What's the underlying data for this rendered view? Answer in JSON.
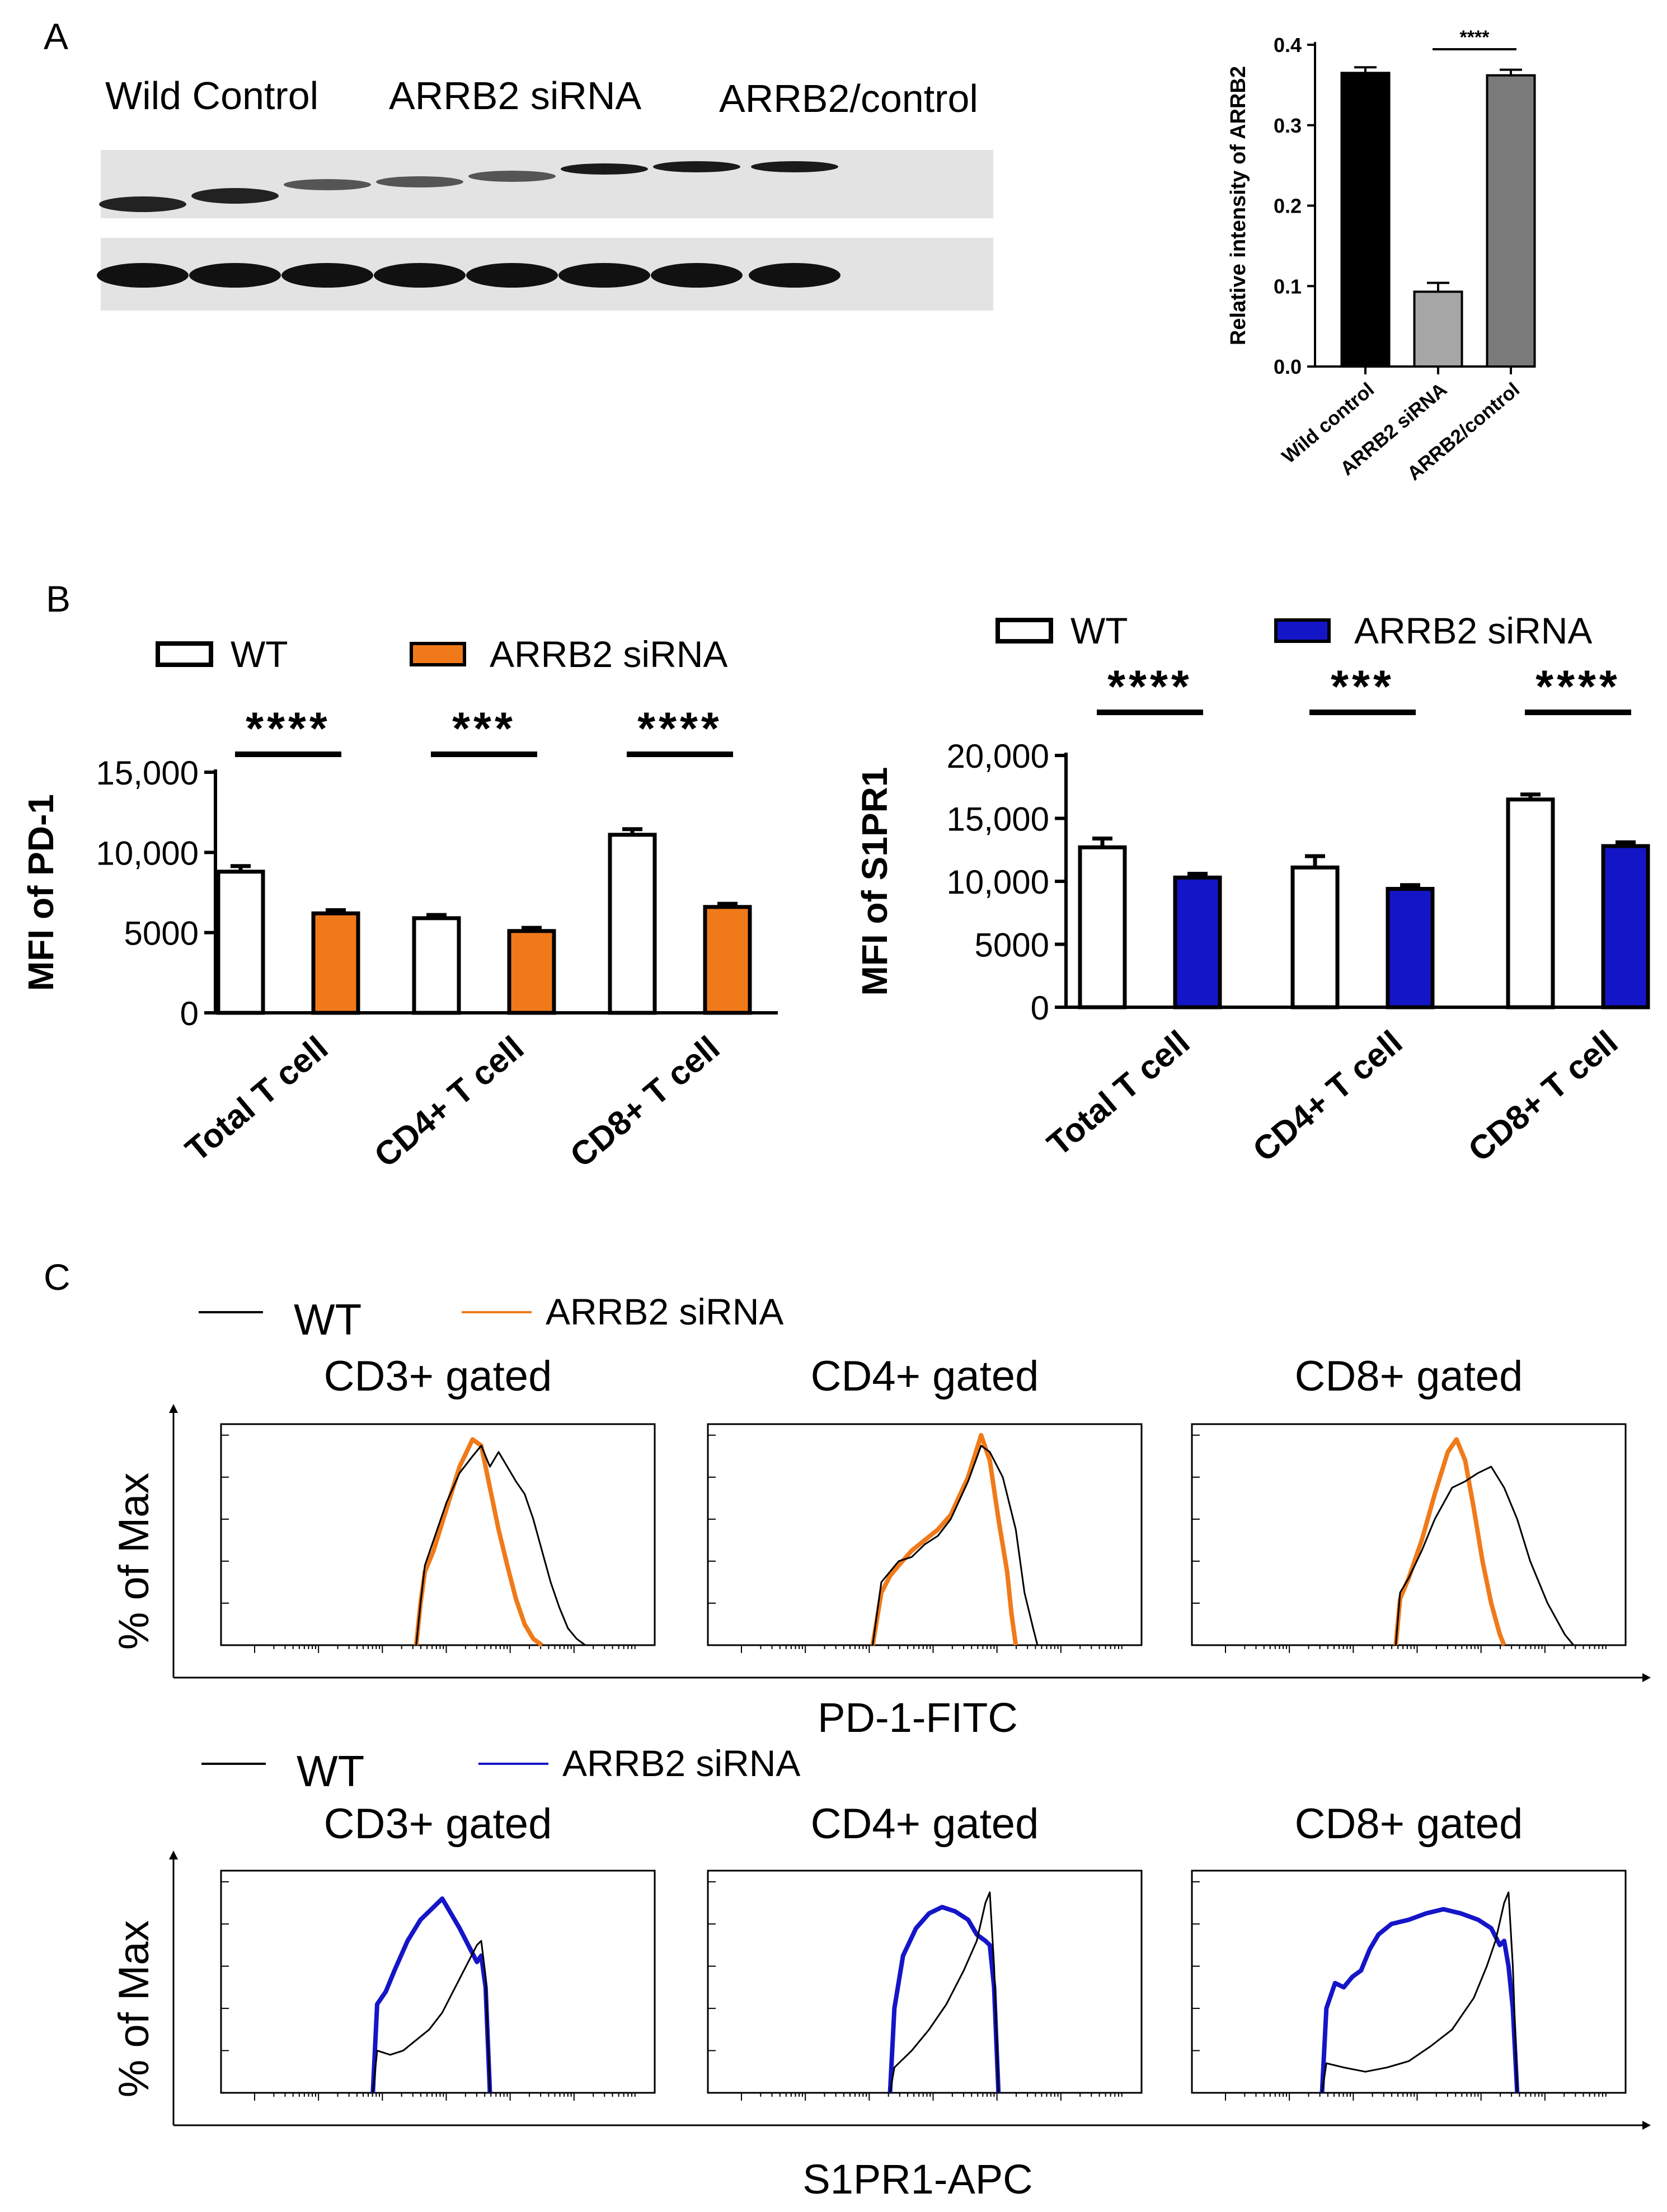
{
  "panel_labels": {
    "A": "A",
    "B": "B",
    "C": "C"
  },
  "western_blot": {
    "group_labels": [
      "Wild Control",
      "ARRB2 siRNA",
      "ARRB2/control"
    ],
    "lanes": 8
  },
  "colors": {
    "wt_line": "#000000",
    "pd1_sirna": "#f07a1a",
    "s1pr1_sirna": "#1515c8",
    "bar_wild": "#000000",
    "bar_sirna": "#a6a6a6",
    "bar_arrb2ctrl": "#7a7a7a"
  },
  "chart_data": [
    {
      "type": "bar",
      "id": "arrb2_intensity",
      "ylabel": "Relative intensity of ARRB2",
      "categories": [
        "Wild control",
        "ARRB2 siRNA",
        "ARRB2/control"
      ],
      "values": [
        0.365,
        0.093,
        0.362
      ],
      "errors": [
        0.007,
        0.011,
        0.007
      ],
      "ylim": [
        0,
        0.4
      ],
      "yticks": [
        "0.0",
        "0.1",
        "0.2",
        "0.3",
        "0.4"
      ],
      "significance": [
        {
          "between": [
            1,
            2
          ],
          "label": "****"
        }
      ]
    },
    {
      "type": "bar",
      "id": "pd1_mfi",
      "ylabel": "MFI of PD-1",
      "categories": [
        "Total T cell",
        "CD4+ T cell",
        "CD8+ T cell"
      ],
      "series": [
        {
          "name": "WT",
          "values": [
            8800,
            5900,
            11100
          ],
          "errors": [
            350,
            200,
            350
          ]
        },
        {
          "name": "ARRB2 siRNA",
          "values": [
            6200,
            5100,
            6600
          ],
          "errors": [
            200,
            200,
            200
          ]
        }
      ],
      "ylim": [
        0,
        15000
      ],
      "yticks": [
        "0",
        "5000",
        "10,000",
        "15,000"
      ],
      "significance": [
        "****",
        "***",
        "****"
      ]
    },
    {
      "type": "bar",
      "id": "s1pr1_mfi",
      "ylabel": "MFI of S1PR1",
      "categories": [
        "Total T cell",
        "CD4+ T cell",
        "CD8+ T cell"
      ],
      "series": [
        {
          "name": "WT",
          "values": [
            12700,
            11100,
            16500
          ],
          "errors": [
            700,
            900,
            400
          ]
        },
        {
          "name": "ARRB2 siRNA",
          "values": [
            10300,
            9400,
            12800
          ],
          "errors": [
            300,
            300,
            300
          ]
        }
      ],
      "ylim": [
        0,
        20000
      ],
      "yticks": [
        "0",
        "5000",
        "10,000",
        "15,000",
        "20,000"
      ],
      "significance": [
        "****",
        "***",
        "****"
      ]
    },
    {
      "type": "line",
      "id": "pd1_histograms",
      "xlabel": "PD-1-FITC",
      "ylabel": "% of Max",
      "legend": [
        "WT",
        "ARRB2 siRNA"
      ],
      "panels": [
        {
          "title": "CD3+ gated",
          "wt": [
            [
              0.45,
              0
            ],
            [
              0.46,
              0.2
            ],
            [
              0.47,
              0.38
            ],
            [
              0.49,
              0.5
            ],
            [
              0.52,
              0.68
            ],
            [
              0.55,
              0.82
            ],
            [
              0.58,
              0.9
            ],
            [
              0.6,
              0.95
            ],
            [
              0.62,
              0.85
            ],
            [
              0.64,
              0.92
            ],
            [
              0.66,
              0.85
            ],
            [
              0.68,
              0.78
            ],
            [
              0.7,
              0.72
            ],
            [
              0.72,
              0.6
            ],
            [
              0.74,
              0.45
            ],
            [
              0.76,
              0.3
            ],
            [
              0.78,
              0.18
            ],
            [
              0.8,
              0.08
            ],
            [
              0.82,
              0.03
            ],
            [
              0.84,
              0
            ]
          ],
          "sirna": [
            [
              0.45,
              0
            ],
            [
              0.46,
              0.2
            ],
            [
              0.47,
              0.35
            ],
            [
              0.49,
              0.45
            ],
            [
              0.52,
              0.65
            ],
            [
              0.55,
              0.85
            ],
            [
              0.58,
              0.98
            ],
            [
              0.6,
              0.95
            ],
            [
              0.62,
              0.75
            ],
            [
              0.64,
              0.55
            ],
            [
              0.66,
              0.38
            ],
            [
              0.68,
              0.22
            ],
            [
              0.7,
              0.1
            ],
            [
              0.72,
              0.03
            ],
            [
              0.74,
              0
            ]
          ]
        },
        {
          "title": "CD4+ gated",
          "wt": [
            [
              0.38,
              0
            ],
            [
              0.4,
              0.3
            ],
            [
              0.42,
              0.35
            ],
            [
              0.44,
              0.4
            ],
            [
              0.47,
              0.42
            ],
            [
              0.5,
              0.48
            ],
            [
              0.53,
              0.52
            ],
            [
              0.56,
              0.6
            ],
            [
              0.6,
              0.78
            ],
            [
              0.63,
              0.95
            ],
            [
              0.65,
              0.92
            ],
            [
              0.68,
              0.8
            ],
            [
              0.71,
              0.55
            ],
            [
              0.73,
              0.25
            ],
            [
              0.75,
              0.08
            ],
            [
              0.76,
              0
            ]
          ],
          "sirna": [
            [
              0.38,
              0
            ],
            [
              0.4,
              0.25
            ],
            [
              0.42,
              0.33
            ],
            [
              0.44,
              0.38
            ],
            [
              0.47,
              0.45
            ],
            [
              0.5,
              0.5
            ],
            [
              0.53,
              0.55
            ],
            [
              0.56,
              0.62
            ],
            [
              0.6,
              0.8
            ],
            [
              0.63,
              1.0
            ],
            [
              0.65,
              0.88
            ],
            [
              0.67,
              0.6
            ],
            [
              0.69,
              0.35
            ],
            [
              0.7,
              0.15
            ],
            [
              0.71,
              0
            ]
          ]
        },
        {
          "title": "CD8+ gated",
          "wt": [
            [
              0.47,
              0
            ],
            [
              0.48,
              0.25
            ],
            [
              0.5,
              0.32
            ],
            [
              0.53,
              0.45
            ],
            [
              0.56,
              0.6
            ],
            [
              0.6,
              0.75
            ],
            [
              0.63,
              0.78
            ],
            [
              0.66,
              0.82
            ],
            [
              0.69,
              0.85
            ],
            [
              0.72,
              0.75
            ],
            [
              0.75,
              0.6
            ],
            [
              0.78,
              0.4
            ],
            [
              0.82,
              0.2
            ],
            [
              0.86,
              0.05
            ],
            [
              0.88,
              0
            ]
          ],
          "sirna": [
            [
              0.47,
              0
            ],
            [
              0.48,
              0.22
            ],
            [
              0.5,
              0.32
            ],
            [
              0.53,
              0.5
            ],
            [
              0.56,
              0.72
            ],
            [
              0.59,
              0.92
            ],
            [
              0.61,
              0.98
            ],
            [
              0.63,
              0.88
            ],
            [
              0.65,
              0.65
            ],
            [
              0.67,
              0.4
            ],
            [
              0.69,
              0.2
            ],
            [
              0.71,
              0.05
            ],
            [
              0.72,
              0
            ]
          ]
        }
      ]
    },
    {
      "type": "line",
      "id": "s1pr1_histograms",
      "xlabel": "S1PR1-APC",
      "ylabel": "% of Max",
      "legend": [
        "WT",
        "ARRB2 siRNA"
      ],
      "panels": [
        {
          "title": "CD3+ gated",
          "wt": [
            [
              0.35,
              0
            ],
            [
              0.36,
              0.2
            ],
            [
              0.39,
              0.18
            ],
            [
              0.42,
              0.2
            ],
            [
              0.45,
              0.25
            ],
            [
              0.48,
              0.3
            ],
            [
              0.51,
              0.38
            ],
            [
              0.54,
              0.5
            ],
            [
              0.57,
              0.62
            ],
            [
              0.59,
              0.7
            ],
            [
              0.6,
              0.72
            ],
            [
              0.61,
              0.55
            ],
            [
              0.62,
              0
            ]
          ],
          "sirna": [
            [
              0.35,
              0
            ],
            [
              0.36,
              0.42
            ],
            [
              0.38,
              0.48
            ],
            [
              0.4,
              0.58
            ],
            [
              0.43,
              0.72
            ],
            [
              0.46,
              0.82
            ],
            [
              0.49,
              0.88
            ],
            [
              0.51,
              0.92
            ],
            [
              0.53,
              0.85
            ],
            [
              0.55,
              0.78
            ],
            [
              0.57,
              0.7
            ],
            [
              0.59,
              0.62
            ],
            [
              0.6,
              0.65
            ],
            [
              0.61,
              0.5
            ],
            [
              0.62,
              0
            ]
          ]
        },
        {
          "title": "CD4+ gated",
          "wt": [
            [
              0.42,
              0
            ],
            [
              0.43,
              0.12
            ],
            [
              0.47,
              0.2
            ],
            [
              0.51,
              0.3
            ],
            [
              0.55,
              0.42
            ],
            [
              0.59,
              0.58
            ],
            [
              0.62,
              0.72
            ],
            [
              0.64,
              0.9
            ],
            [
              0.65,
              0.95
            ],
            [
              0.66,
              0.6
            ],
            [
              0.67,
              0
            ]
          ],
          "sirna": [
            [
              0.42,
              0
            ],
            [
              0.43,
              0.4
            ],
            [
              0.45,
              0.65
            ],
            [
              0.48,
              0.78
            ],
            [
              0.51,
              0.85
            ],
            [
              0.54,
              0.88
            ],
            [
              0.57,
              0.86
            ],
            [
              0.6,
              0.82
            ],
            [
              0.62,
              0.75
            ],
            [
              0.64,
              0.72
            ],
            [
              0.65,
              0.7
            ],
            [
              0.66,
              0.5
            ],
            [
              0.67,
              0
            ]
          ]
        },
        {
          "title": "CD8+ gated",
          "wt": [
            [
              0.3,
              0
            ],
            [
              0.31,
              0.14
            ],
            [
              0.35,
              0.12
            ],
            [
              0.4,
              0.1
            ],
            [
              0.45,
              0.12
            ],
            [
              0.5,
              0.15
            ],
            [
              0.55,
              0.22
            ],
            [
              0.6,
              0.3
            ],
            [
              0.65,
              0.45
            ],
            [
              0.68,
              0.6
            ],
            [
              0.7,
              0.72
            ],
            [
              0.72,
              0.9
            ],
            [
              0.73,
              0.95
            ],
            [
              0.74,
              0.6
            ],
            [
              0.75,
              0
            ]
          ],
          "sirna": [
            [
              0.3,
              0
            ],
            [
              0.31,
              0.4
            ],
            [
              0.33,
              0.52
            ],
            [
              0.35,
              0.5
            ],
            [
              0.37,
              0.55
            ],
            [
              0.39,
              0.58
            ],
            [
              0.41,
              0.68
            ],
            [
              0.43,
              0.75
            ],
            [
              0.46,
              0.8
            ],
            [
              0.5,
              0.82
            ],
            [
              0.54,
              0.85
            ],
            [
              0.58,
              0.87
            ],
            [
              0.62,
              0.85
            ],
            [
              0.66,
              0.82
            ],
            [
              0.69,
              0.78
            ],
            [
              0.71,
              0.7
            ],
            [
              0.72,
              0.72
            ],
            [
              0.73,
              0.6
            ],
            [
              0.74,
              0.4
            ],
            [
              0.75,
              0
            ]
          ]
        }
      ]
    }
  ]
}
